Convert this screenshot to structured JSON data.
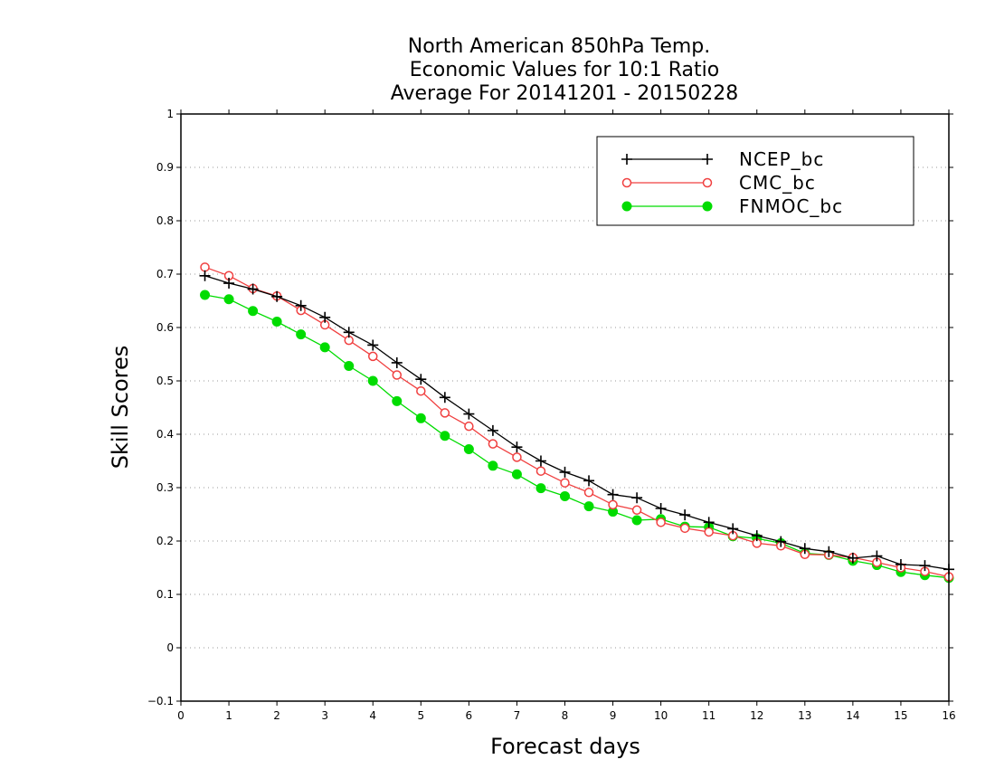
{
  "chart_data": {
    "type": "line",
    "title": [
      "North American 850hPa Temp.",
      "Economic Values for 10:1 Ratio",
      "Average For 20141201 - 20150228"
    ],
    "xlabel": "Forecast days",
    "ylabel": "Skill Scores",
    "xlim": [
      0,
      16
    ],
    "ylim": [
      -0.1,
      1
    ],
    "xticks": [
      0,
      1,
      2,
      3,
      4,
      5,
      6,
      7,
      8,
      9,
      10,
      11,
      12,
      13,
      14,
      15,
      16
    ],
    "yticks": [
      -0.1,
      0,
      0.1,
      0.2,
      0.3,
      0.4,
      0.5,
      0.6,
      0.7,
      0.8,
      0.9,
      1
    ],
    "ytick_labels": [
      "−0.1",
      "0",
      "0.1",
      "0.2",
      "0.3",
      "0.4",
      "0.5",
      "0.6",
      "0.7",
      "0.8",
      "0.9",
      "1"
    ],
    "grid": "horizontal-dotted",
    "legend_position": "top-right",
    "x": [
      0.5,
      1,
      1.5,
      2,
      2.5,
      3,
      3.5,
      4,
      4.5,
      5,
      5.5,
      6,
      6.5,
      7,
      7.5,
      8,
      8.5,
      9,
      9.5,
      10,
      10.5,
      11,
      11.5,
      12,
      12.5,
      13,
      13.5,
      14,
      14.5,
      15,
      15.5,
      16
    ],
    "series": [
      {
        "name": "NCEP_bc",
        "color": "#000000",
        "marker": "plus",
        "values": [
          0.697,
          0.683,
          0.672,
          0.658,
          0.641,
          0.619,
          0.591,
          0.567,
          0.534,
          0.503,
          0.469,
          0.438,
          0.407,
          0.376,
          0.35,
          0.329,
          0.313,
          0.287,
          0.281,
          0.261,
          0.249,
          0.235,
          0.223,
          0.21,
          0.199,
          0.186,
          0.18,
          0.168,
          0.172,
          0.156,
          0.154,
          0.147
        ]
      },
      {
        "name": "CMC_bc",
        "color": "#f04040",
        "marker": "open-circle",
        "values": [
          0.713,
          0.697,
          0.673,
          0.659,
          0.632,
          0.605,
          0.576,
          0.546,
          0.511,
          0.481,
          0.44,
          0.415,
          0.382,
          0.357,
          0.331,
          0.309,
          0.291,
          0.268,
          0.258,
          0.235,
          0.224,
          0.217,
          0.21,
          0.196,
          0.191,
          0.175,
          0.174,
          0.169,
          0.16,
          0.15,
          0.143,
          0.133
        ]
      },
      {
        "name": "FNMOC_bc",
        "color": "#00dc00",
        "marker": "filled-circle",
        "values": [
          0.661,
          0.653,
          0.631,
          0.611,
          0.587,
          0.563,
          0.528,
          0.5,
          0.462,
          0.43,
          0.397,
          0.372,
          0.341,
          0.325,
          0.299,
          0.284,
          0.265,
          0.255,
          0.239,
          0.241,
          0.227,
          0.226,
          0.209,
          0.205,
          0.196,
          0.177,
          0.174,
          0.163,
          0.155,
          0.142,
          0.136,
          0.131
        ]
      }
    ]
  }
}
